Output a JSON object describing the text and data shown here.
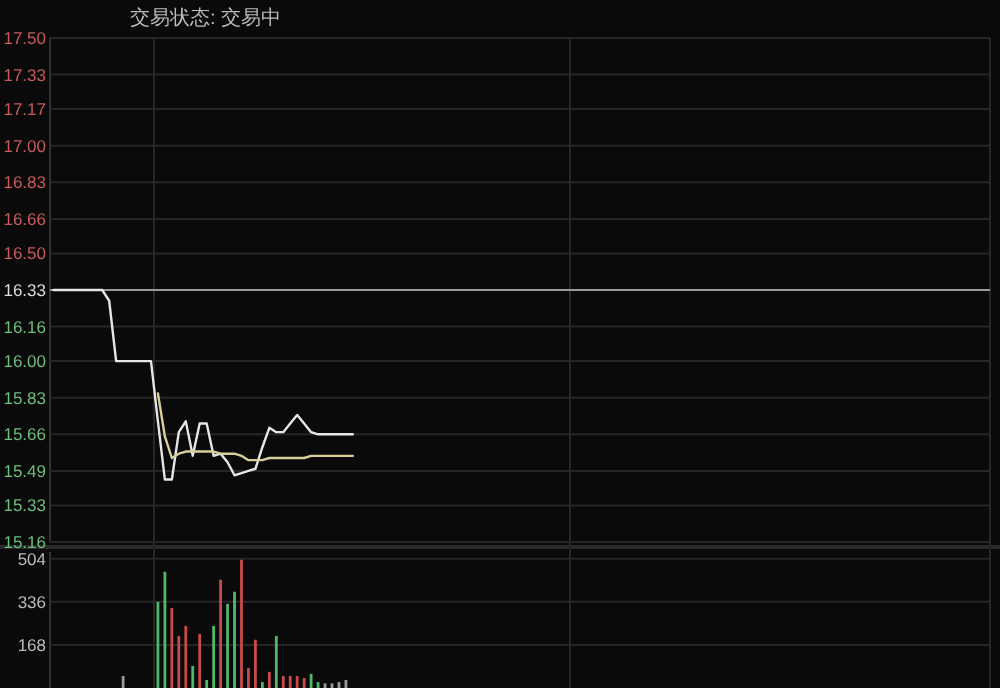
{
  "chart_data": [
    {
      "type": "line",
      "title": "交易状态: 交易中",
      "categories": [
        null,
        null,
        null,
        null,
        null,
        null,
        null,
        null,
        null,
        null,
        null,
        null,
        null,
        null,
        null,
        null,
        null,
        null,
        null,
        null,
        null,
        null,
        null,
        null,
        null,
        null,
        null,
        null,
        null,
        null,
        null,
        null,
        null,
        null,
        null,
        null,
        null,
        null,
        null,
        null,
        null,
        null,
        null,
        null,
        null,
        null,
        null,
        null,
        null,
        null,
        null,
        null,
        null,
        null,
        null,
        null,
        null,
        null,
        null,
        null,
        null,
        null,
        null,
        null,
        null,
        null,
        null,
        null,
        null,
        null,
        null,
        null,
        null,
        null,
        null,
        null,
        null,
        null,
        null,
        null,
        null,
        null,
        null,
        null,
        null,
        null,
        null,
        null,
        null,
        null,
        null,
        null,
        null,
        null,
        null,
        null,
        null,
        null,
        null,
        null,
        null,
        null,
        null,
        null,
        null,
        null,
        null,
        null,
        null,
        null,
        null,
        null,
        null,
        null,
        null,
        null,
        null,
        null,
        null,
        null,
        null,
        null,
        null,
        null,
        null,
        null,
        null,
        null,
        null,
        null,
        null,
        null,
        null,
        null,
        null
      ],
      "series": [
        {
          "color": "#e6e6e6",
          "values": [
            16.33,
            16.33,
            16.33,
            16.33,
            16.33,
            16.33,
            16.33,
            16.33,
            16.28,
            16.0,
            16.0,
            16.0,
            16.0,
            16.0,
            16.0,
            15.72,
            15.45,
            15.45,
            15.67,
            15.72,
            15.56,
            15.71,
            15.71,
            15.56,
            15.57,
            15.53,
            15.47,
            15.48,
            15.49,
            15.5,
            15.6,
            15.69,
            15.67,
            15.67,
            15.71,
            15.75,
            15.71,
            15.67,
            15.66,
            15.66,
            15.66,
            15.66,
            15.66,
            15.66,
            null,
            null,
            null,
            null,
            null,
            null,
            null,
            null,
            null,
            null,
            null,
            null,
            null,
            null,
            null,
            null,
            null,
            null,
            null,
            null,
            null,
            null,
            null,
            null,
            null,
            null,
            null,
            null,
            null,
            null,
            null,
            null,
            null,
            null,
            null,
            null,
            null,
            null,
            null,
            null,
            null,
            null,
            null,
            null,
            null,
            null,
            null,
            null,
            null,
            null,
            null,
            null,
            null,
            null,
            null,
            null,
            null,
            null,
            null,
            null,
            null,
            null,
            null,
            null,
            null,
            null,
            null,
            null,
            null,
            null,
            null,
            null,
            null,
            null,
            null,
            null,
            null,
            null,
            null,
            null,
            null,
            null,
            null,
            null,
            null,
            null,
            null,
            null,
            null,
            null,
            null
          ]
        },
        {
          "color": "#d8cf9a",
          "values": [
            null,
            null,
            null,
            null,
            null,
            null,
            null,
            null,
            null,
            null,
            null,
            null,
            null,
            null,
            null,
            15.85,
            15.65,
            15.55,
            15.57,
            15.58,
            15.58,
            15.58,
            15.58,
            15.58,
            15.57,
            15.57,
            15.57,
            15.56,
            15.54,
            15.54,
            15.54,
            15.55,
            15.55,
            15.55,
            15.55,
            15.55,
            15.55,
            15.56,
            15.56,
            15.56,
            15.56,
            15.56,
            15.56,
            15.56,
            null,
            null,
            null,
            null,
            null,
            null,
            null,
            null,
            null,
            null,
            null,
            null,
            null,
            null,
            null,
            null,
            null,
            null,
            null,
            null,
            null,
            null,
            null,
            null,
            null,
            null,
            null,
            null,
            null,
            null,
            null,
            null,
            null,
            null,
            null,
            null,
            null,
            null,
            null,
            null,
            null,
            null,
            null,
            null,
            null,
            null,
            null,
            null,
            null,
            null,
            null,
            null,
            null,
            null,
            null,
            null,
            null,
            null,
            null,
            null,
            null,
            null,
            null,
            null,
            null,
            null,
            null,
            null,
            null,
            null,
            null,
            null,
            null,
            null,
            null,
            null,
            null,
            null,
            null,
            null,
            null,
            null,
            null,
            null,
            null,
            null,
            null,
            null,
            null,
            null,
            null
          ]
        }
      ],
      "ylim": [
        15.16,
        17.5
      ],
      "yticks": [
        15.16,
        15.33,
        15.49,
        15.66,
        15.83,
        {
          "value": 16.0,
          "label": "16.00"
        },
        16.16,
        16.33,
        {
          "value": 16.5,
          "label": "16.50"
        },
        16.66,
        16.83,
        {
          "value": 17.0,
          "label": "17.00"
        },
        17.17,
        17.33,
        {
          "value": 17.5,
          "label": "17.50"
        }
      ],
      "ref_lines": [
        {
          "axis": "y",
          "value": 16.33,
          "color": "#9a9a9a"
        }
      ],
      "grid": "y",
      "tick_labels": "y",
      "line_style": "solid",
      "marker": "none"
    },
    {
      "type": "bar",
      "categories": [
        null,
        null,
        null,
        null,
        null,
        null,
        null,
        null,
        null,
        null,
        null,
        null,
        null,
        null,
        null,
        null,
        null,
        null,
        null,
        null,
        null,
        null,
        null,
        null,
        null,
        null,
        null,
        null,
        null,
        null,
        null,
        null,
        null,
        null,
        null,
        null,
        null,
        null,
        null,
        null,
        null,
        null,
        null,
        null,
        null,
        null,
        null,
        null,
        null,
        null,
        null,
        null,
        null,
        null,
        null,
        null,
        null,
        null,
        null,
        null,
        null,
        null,
        null,
        null,
        null,
        null,
        null,
        null,
        null,
        null,
        null,
        null,
        null,
        null,
        null,
        null,
        null,
        null,
        null,
        null,
        null,
        null,
        null,
        null,
        null,
        null,
        null,
        null,
        null,
        null,
        null,
        null,
        null,
        null,
        null,
        null,
        null,
        null,
        null,
        null,
        null,
        null,
        null,
        null,
        null,
        null,
        null,
        null,
        null,
        null,
        null,
        null,
        null,
        null,
        null,
        null,
        null,
        null,
        null,
        null,
        null,
        null,
        null,
        null,
        null,
        null,
        null,
        null,
        null,
        null,
        null,
        null,
        null,
        null,
        null
      ],
      "values": [
        null,
        null,
        null,
        null,
        null,
        null,
        null,
        null,
        null,
        null,
        47,
        null,
        null,
        null,
        null,
        336,
        453,
        312,
        203,
        242,
        86,
        211,
        31,
        242,
        422,
        328,
        375,
        500,
        78,
        188,
        23,
        63,
        203,
        47,
        47,
        47,
        39,
        55,
        23,
        18,
        18,
        23,
        31,
        null,
        null,
        null,
        null,
        null,
        null,
        null,
        null,
        null,
        null,
        null,
        null,
        null,
        null,
        null,
        null,
        null,
        null,
        null,
        null,
        null,
        null,
        null,
        null,
        null,
        null,
        null,
        null,
        null,
        null,
        null,
        null,
        null,
        null,
        null,
        null,
        null,
        null,
        null,
        null,
        null,
        null,
        null,
        null,
        null,
        null,
        null,
        null,
        null,
        null,
        null,
        null,
        null,
        null,
        null,
        null,
        null,
        null,
        null,
        null,
        null,
        null,
        null,
        null,
        null,
        null,
        null,
        null,
        null,
        null,
        null,
        null,
        null,
        null,
        null,
        null,
        null,
        null,
        null,
        null,
        null,
        null,
        null,
        null,
        null,
        null,
        null,
        null,
        null,
        null,
        null,
        null
      ],
      "colors": [
        null,
        null,
        null,
        null,
        null,
        null,
        null,
        null,
        null,
        null,
        "#9a9a9a",
        null,
        null,
        null,
        null,
        "#4fb86a",
        "#4fb86a",
        "#c84a4a",
        "#c84a4a",
        "#c84a4a",
        "#4fb86a",
        "#c84a4a",
        "#4fb86a",
        "#4fb86a",
        "#c84a4a",
        "#4fb86a",
        "#4fb86a",
        "#c84a4a",
        "#c84a4a",
        "#c84a4a",
        "#4fb86a",
        "#c84a4a",
        "#4fb86a",
        "#c84a4a",
        "#c84a4a",
        "#c84a4a",
        "#c84a4a",
        "#4fb86a",
        "#4fb86a",
        "#9a9a9a",
        "#9a9a9a",
        "#9a9a9a",
        "#9a9a9a",
        null,
        null,
        null,
        null,
        null,
        null,
        null,
        null,
        null,
        null,
        null,
        null,
        null,
        null,
        null,
        null,
        null,
        null,
        null,
        null,
        null,
        null,
        null,
        null,
        null,
        null,
        null,
        null,
        null,
        null,
        null,
        null,
        null,
        null,
        null,
        null,
        null,
        null,
        null,
        null,
        null,
        null,
        null,
        null,
        null,
        null,
        null,
        null,
        null,
        null,
        null,
        null,
        null,
        null,
        null,
        null,
        null,
        null,
        null,
        null,
        null,
        null,
        null,
        null,
        null,
        null,
        null,
        null,
        null,
        null,
        null,
        null,
        null,
        null,
        null,
        null,
        null,
        null,
        null,
        null,
        null,
        null,
        null,
        null,
        null,
        null,
        null,
        null,
        null,
        null,
        null,
        null
      ],
      "ylim": [
        0,
        530
      ],
      "yticks": [
        168,
        336,
        504
      ],
      "grid": "y",
      "tick_labels": "y"
    }
  ]
}
